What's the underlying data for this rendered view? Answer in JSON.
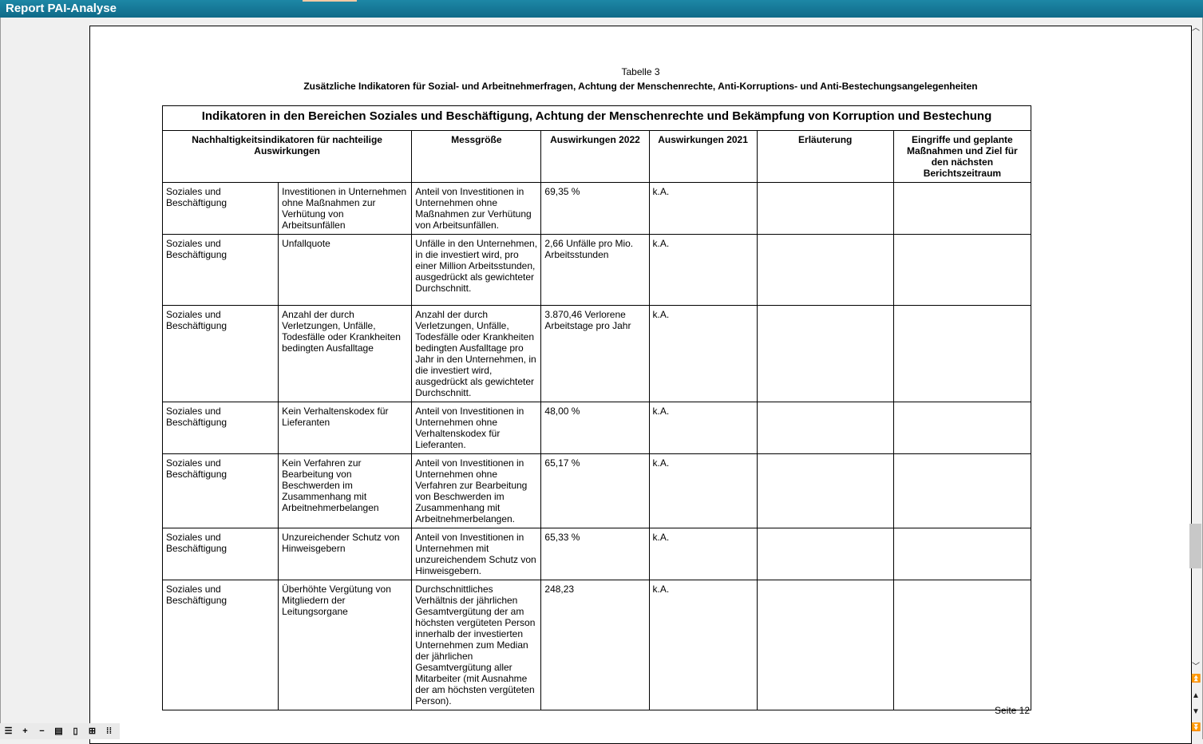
{
  "window": {
    "title": "Report PAI-Analyse"
  },
  "page": {
    "caption": "Tabelle 3",
    "subtitle": "Zusätzliche Indikatoren für Sozial- und Arbeitnehmerfragen, Achtung der Menschenrechte, Anti-Korruptions- und Anti-Bestechungsangelegenheiten",
    "page_number": "Seite 12"
  },
  "table": {
    "title": "Indikatoren in den Bereichen Soziales und Beschäftigung, Achtung der Menschenrechte und Bekämpfung von Korruption und Bestechung",
    "headers": [
      "Nachhaltigkeitsindikatoren für nachteilige Auswirkungen",
      "Messgröße",
      "Auswirkungen 2022",
      "Auswirkungen 2021",
      "Erläuterung",
      "Eingriffe und geplante Maßnahmen und Ziel für den nächsten Berichtszeitraum"
    ],
    "rows": [
      [
        "Soziales und Beschäftigung",
        "Investitionen in Unternehmen ohne Maßnahmen zur Verhütung von Arbeitsunfällen",
        "Anteil von Investitionen in Unternehmen ohne Maßnahmen zur Verhütung von Arbeitsunfällen.",
        "69,35 %",
        "k.A.",
        "",
        ""
      ],
      [
        "Soziales und Beschäftigung",
        "Unfallquote",
        "Unfälle in den Unternehmen, in die investiert wird, pro einer Million Arbeitsstunden, ausgedrückt als gewichteter Durchschnitt.",
        "2,66 Unfälle pro Mio. Arbeitsstunden",
        "k.A.",
        "",
        ""
      ],
      [
        "Soziales und Beschäftigung",
        "Anzahl der durch Verletzungen, Unfälle, Todesfälle oder Krankheiten bedingten Ausfalltage",
        "Anzahl der durch Verletzungen, Unfälle, Todesfälle oder Krankheiten bedingten Ausfalltage pro Jahr in den Unternehmen, in die investiert wird, ausgedrückt als gewichteter Durchschnitt.",
        "3.870,46 Verlorene Arbeitstage pro Jahr",
        "k.A.",
        "",
        ""
      ],
      [
        "Soziales und Beschäftigung",
        "Kein Verhaltenskodex für Lieferanten",
        "Anteil von Investitionen in Unternehmen ohne Verhaltenskodex für Lieferanten.",
        "48,00 %",
        "k.A.",
        "",
        ""
      ],
      [
        "Soziales und Beschäftigung",
        "Kein Verfahren zur Bearbeitung von Beschwerden im Zusammenhang mit Arbeitnehmerbelangen",
        "Anteil von Investitionen in Unternehmen ohne Verfahren zur Bearbeitung von Beschwerden im Zusammenhang mit Arbeitnehmerbelangen.",
        "65,17 %",
        "k.A.",
        "",
        ""
      ],
      [
        "Soziales und Beschäftigung",
        "Unzureichender Schutz von Hinweisgebern",
        "Anteil von Investitionen in Unternehmen mit unzureichendem Schutz von Hinweisgebern.",
        "65,33 %",
        "k.A.",
        "",
        ""
      ],
      [
        "Soziales und Beschäftigung",
        "Überhöhte Vergütung von Mitgliedern der Leitungsorgane",
        "Durchschnittliches Verhältnis der jährlichen Gesamtvergütung der am höchsten vergüteten Person innerhalb der investierten Unternehmen zum Median der jährlichen Gesamtvergütung aller Mitarbeiter (mit Ausnahme der am höchsten vergüteten Person).",
        "248,23",
        "k.A.",
        "",
        ""
      ]
    ]
  },
  "toolbar": {
    "icons": [
      "menu-icon",
      "zoom-in-icon",
      "zoom-out-icon",
      "single-page-icon",
      "page-icon",
      "four-pages-icon",
      "many-pages-icon"
    ]
  },
  "scrollbar": {
    "position_fraction": 0.72
  }
}
